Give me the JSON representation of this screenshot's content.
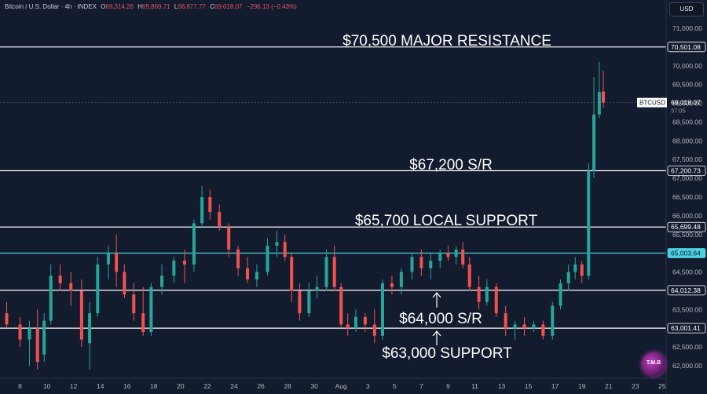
{
  "header": {
    "symbol": "Bitcoin / U.S. Dollar · 4h · INDEX",
    "o_label": "O",
    "o_value": "69,314.26",
    "h_label": "H",
    "h_value": "69,869.71",
    "l_label": "L",
    "l_value": "68,877.77",
    "c_label": "C",
    "c_value": "69,018.07",
    "change": "−296.13 (−0.43%)"
  },
  "currency_button": "USD",
  "logo_text": "T.M.B",
  "colors": {
    "background": "#131b2e",
    "up": "#26a69a",
    "down": "#ef5350",
    "level_line": "#ffffff",
    "highlight_line": "#4dd0e1",
    "axis_text": "#b2b5be"
  },
  "chart_data": {
    "type": "candlestick",
    "title": "",
    "xlabel": "",
    "ylabel": "",
    "ylim": [
      61800,
      71300
    ],
    "grid": false,
    "y_ticks": [
      62000,
      62500,
      63000,
      63500,
      64000,
      64500,
      65000,
      65500,
      66000,
      66500,
      67000,
      67500,
      68000,
      68500,
      69000,
      69500,
      70000,
      70500,
      71000
    ],
    "y_tick_labels": [
      "62,000.00",
      "62,500.00",
      "63,000.00",
      "63,500.00",
      "64,000.00",
      "64,500.00",
      "65,000.00",
      "65,500.00",
      "66,000.00",
      "66,500.00",
      "67,000.00",
      "67,500.00",
      "68,000.00",
      "68,500.00",
      "69,000.00",
      "69,500.00",
      "70,000.00",
      "70,500.00",
      "71,000.00"
    ],
    "x_ticks": [
      "8",
      "10",
      "12",
      "14",
      "16",
      "18",
      "20",
      "22",
      "24",
      "26",
      "28",
      "30",
      "Aug",
      "3",
      "5",
      "7",
      "9",
      "11",
      "13",
      "15",
      "17",
      "19",
      "21",
      "23",
      "25"
    ],
    "x_tick_days": [
      8,
      10,
      12,
      14,
      16,
      18,
      20,
      22,
      24,
      26,
      28,
      30,
      32,
      34,
      36,
      38,
      40,
      42,
      44,
      46,
      48,
      50,
      52,
      54,
      56
    ],
    "x_range_days": [
      6.5,
      56.3
    ],
    "levels": [
      {
        "price": 70501.08,
        "label": "70,501.08",
        "annotation": "$70,500 MAJOR RESISTANCE",
        "color": "#ffffff"
      },
      {
        "price": 67200.73,
        "label": "67,200.73",
        "annotation": "$67,200 S/R",
        "color": "#ffffff"
      },
      {
        "price": 65699.48,
        "label": "65,699.48",
        "annotation": "$65,700 LOCAL SUPPORT",
        "color": "#ffffff"
      },
      {
        "price": 65003.64,
        "label": "65,003.64",
        "annotation": "",
        "color": "#4dd0e1"
      },
      {
        "price": 64012.38,
        "label": "64,012.38",
        "annotation": "$64,000 S/R",
        "color": "#ffffff"
      },
      {
        "price": 63001.41,
        "label": "63,001.41",
        "annotation": "$63,000 SUPPORT",
        "color": "#ffffff"
      }
    ],
    "current_price": {
      "symbol": "BTCUSD",
      "price": 69018.07,
      "label": "69,018.07",
      "countdown": "37:05"
    },
    "series": [
      {
        "name": "",
        "values": [
          [
            7.0,
            63400,
            63700,
            63000,
            63100
          ],
          [
            8.0,
            63100,
            63300,
            62500,
            62700
          ],
          [
            8.7,
            62700,
            63200,
            62000,
            63000
          ],
          [
            9.3,
            63000,
            63500,
            61900,
            62100
          ],
          [
            9.8,
            62300,
            63400,
            62100,
            63200
          ],
          [
            10.3,
            63200,
            64700,
            63100,
            64400
          ],
          [
            11.0,
            64400,
            64700,
            64000,
            64200
          ],
          [
            11.8,
            64200,
            64500,
            63600,
            64000
          ],
          [
            12.6,
            64000,
            64300,
            62500,
            62700
          ],
          [
            13.2,
            62600,
            63700,
            61900,
            63400
          ],
          [
            13.8,
            63400,
            64900,
            63300,
            64700
          ],
          [
            14.6,
            64700,
            65200,
            64300,
            65000
          ],
          [
            15.2,
            65000,
            65500,
            64100,
            64500
          ],
          [
            15.8,
            64500,
            64700,
            63800,
            63900
          ],
          [
            16.5,
            63900,
            64200,
            63200,
            63400
          ],
          [
            17.2,
            63400,
            64100,
            62800,
            62900
          ],
          [
            17.8,
            62900,
            64200,
            62800,
            64100
          ],
          [
            18.6,
            64100,
            64700,
            63900,
            64400
          ],
          [
            19.5,
            64400,
            64900,
            64200,
            64800
          ],
          [
            20.3,
            64800,
            65100,
            64200,
            64700
          ],
          [
            21.0,
            64700,
            65900,
            64500,
            65800
          ],
          [
            21.6,
            65800,
            66800,
            65700,
            66500
          ],
          [
            22.2,
            66500,
            66700,
            65900,
            66100
          ],
          [
            22.9,
            66100,
            66300,
            65600,
            65700
          ],
          [
            23.6,
            65700,
            65800,
            64900,
            65100
          ],
          [
            24.3,
            65100,
            65200,
            64400,
            64600
          ],
          [
            25.0,
            64600,
            64900,
            64200,
            64300
          ],
          [
            25.7,
            64300,
            64700,
            64100,
            64500
          ],
          [
            26.5,
            64500,
            65400,
            64400,
            65200
          ],
          [
            27.2,
            65200,
            65600,
            64900,
            65300
          ],
          [
            27.8,
            65300,
            65500,
            64800,
            64900
          ],
          [
            28.3,
            64900,
            65000,
            63700,
            64000
          ],
          [
            28.9,
            64000,
            64200,
            63200,
            63400
          ],
          [
            29.6,
            63400,
            64200,
            63300,
            64000
          ],
          [
            30.2,
            64000,
            64400,
            63800,
            64100
          ],
          [
            30.9,
            64100,
            65100,
            64000,
            64900
          ],
          [
            31.5,
            64900,
            65200,
            64000,
            64100
          ],
          [
            32.0,
            64100,
            64200,
            63000,
            63100
          ],
          [
            32.5,
            63100,
            63400,
            62800,
            63000
          ],
          [
            33.1,
            63000,
            63500,
            62900,
            63300
          ],
          [
            33.8,
            63300,
            63400,
            62900,
            63100
          ],
          [
            34.5,
            63100,
            63500,
            62600,
            62800
          ],
          [
            35.1,
            62800,
            64300,
            62700,
            64200
          ],
          [
            35.8,
            64200,
            64400,
            63900,
            64100
          ],
          [
            36.5,
            64100,
            64600,
            63900,
            64500
          ],
          [
            37.3,
            64500,
            65000,
            64300,
            64900
          ],
          [
            38.0,
            64900,
            65100,
            64400,
            64600
          ],
          [
            38.7,
            64600,
            65000,
            64300,
            64800
          ],
          [
            39.4,
            64800,
            65100,
            64600,
            65000
          ],
          [
            40.0,
            65000,
            65200,
            64800,
            64900
          ],
          [
            40.6,
            64900,
            65200,
            64700,
            65100
          ],
          [
            41.1,
            65100,
            65300,
            64600,
            64700
          ],
          [
            41.6,
            64700,
            64900,
            64000,
            64100
          ],
          [
            42.3,
            64100,
            64400,
            63500,
            63700
          ],
          [
            42.9,
            63700,
            64300,
            63600,
            64100
          ],
          [
            43.6,
            64100,
            64200,
            63300,
            63400
          ],
          [
            44.3,
            63400,
            63600,
            62800,
            63000
          ],
          [
            45.0,
            63000,
            63200,
            62700,
            63100
          ],
          [
            45.7,
            63100,
            63300,
            62800,
            63000
          ],
          [
            46.4,
            63000,
            63200,
            62900,
            63100
          ],
          [
            47.1,
            63100,
            63200,
            62700,
            62800
          ],
          [
            47.8,
            62800,
            63700,
            62700,
            63600
          ],
          [
            48.4,
            63600,
            64300,
            63500,
            64200
          ],
          [
            49.0,
            64200,
            64700,
            64000,
            64500
          ],
          [
            49.5,
            64500,
            64900,
            64300,
            64700
          ],
          [
            50.0,
            64700,
            64800,
            64200,
            64400
          ],
          [
            50.5,
            64400,
            67400,
            64300,
            67200
          ],
          [
            50.9,
            67200,
            69700,
            67000,
            68700
          ],
          [
            51.3,
            68700,
            70100,
            68600,
            69300
          ],
          [
            51.6,
            69314.26,
            69869.71,
            68877.77,
            69018.07
          ]
        ]
      }
    ]
  }
}
